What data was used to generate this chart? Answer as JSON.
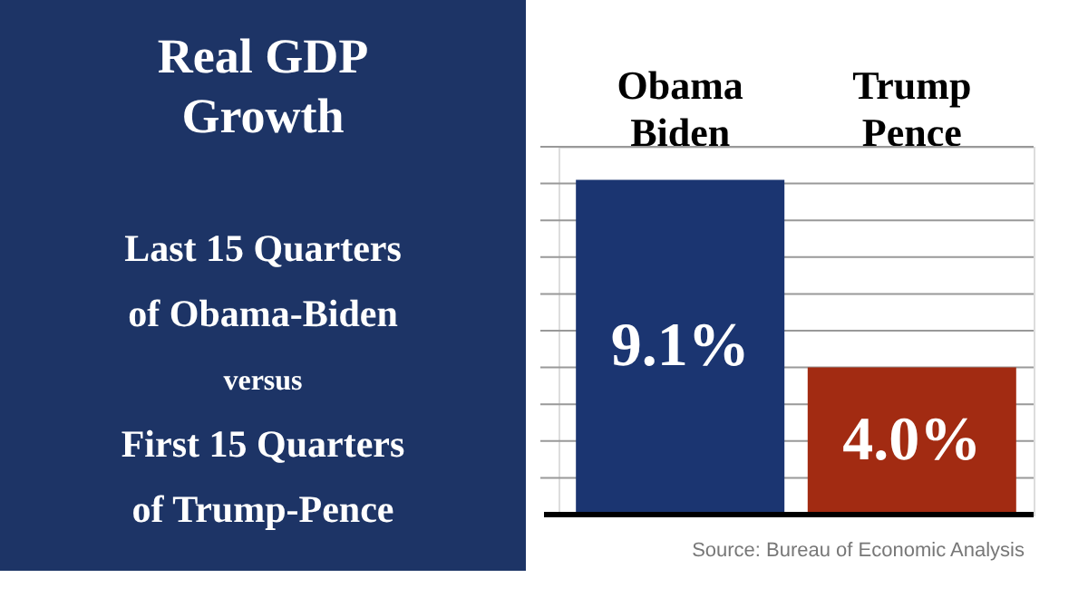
{
  "chart_data": {
    "type": "bar",
    "title": "Real GDP\nGrowth",
    "subtitle": "Last 15 Quarters\nof Obama-Biden\nversus\nFirst 15 Quarters\nof Trump-Pence",
    "categories": [
      "Obama Biden",
      "Trump Pence"
    ],
    "values": [
      9.1,
      4.0
    ],
    "colors": [
      "#1b3571",
      "#a22b12"
    ],
    "value_labels": [
      "9.1%",
      "4.0%"
    ],
    "ylim": [
      0,
      10
    ],
    "yticks": [
      {
        "value": 1,
        "label": null
      },
      {
        "value": 2,
        "label": null
      },
      {
        "value": 3,
        "label": null
      },
      {
        "value": 4,
        "label": null
      },
      {
        "value": 5,
        "label": null
      },
      {
        "value": 6,
        "label": null
      },
      {
        "value": 7,
        "label": null
      },
      {
        "value": 8,
        "label": null
      },
      {
        "value": 9,
        "label": null
      },
      {
        "value": 10,
        "label": null
      }
    ],
    "grid": "y",
    "tick_labels": "x",
    "annotations": [
      "Source: Bureau of Economic Analysis"
    ]
  }
}
